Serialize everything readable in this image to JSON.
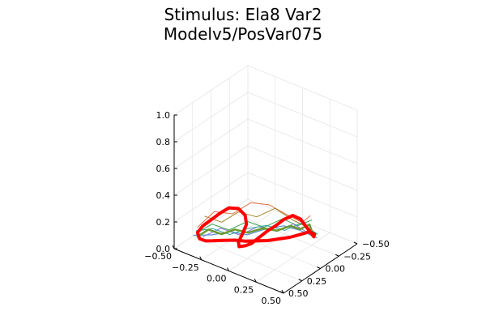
{
  "chart_data": {
    "type": "line",
    "title_lines": [
      "Stimulus: Ela8 Var2",
      "Modelv5/PosVar075"
    ],
    "xlabel": "",
    "ylabel": "",
    "zlabel": "",
    "grid": true,
    "legend": "none",
    "xlim": [
      -0.5,
      0.5
    ],
    "ylim": [
      -0.5,
      0.5
    ],
    "zlim": [
      0,
      1
    ],
    "xticks": [
      "−0.50",
      "−0.25",
      "0.00",
      "0.25",
      "0.50"
    ],
    "yticks": [
      "−0.50",
      "−0.25",
      "0.00",
      "0.25",
      "0.50"
    ],
    "zticks": [
      "0.0",
      "0.2",
      "0.4",
      "0.6",
      "0.8",
      "1.0"
    ],
    "series": [
      {
        "color": "#ff0000",
        "width": 4,
        "points": [
          [
            -0.2,
            0.42,
            0.13
          ],
          [
            -0.14,
            0.36,
            0.13
          ],
          [
            -0.08,
            0.3,
            0.13
          ],
          [
            -0.02,
            0.24,
            0.12
          ],
          [
            0.04,
            0.18,
            0.12
          ],
          [
            0.1,
            0.12,
            0.12
          ],
          [
            0.16,
            0.06,
            0.13
          ],
          [
            0.22,
            0.0,
            0.14
          ],
          [
            0.28,
            -0.06,
            0.16
          ],
          [
            0.32,
            -0.12,
            0.17
          ],
          [
            0.38,
            -0.1,
            0.18
          ],
          [
            0.42,
            -0.03,
            0.2
          ],
          [
            0.43,
            0.05,
            0.28
          ],
          [
            0.4,
            0.12,
            0.38
          ],
          [
            0.37,
            0.18,
            0.42
          ],
          [
            0.33,
            0.24,
            0.4
          ],
          [
            0.28,
            0.28,
            0.35
          ],
          [
            0.22,
            0.3,
            0.3
          ],
          [
            0.16,
            0.32,
            0.24
          ],
          [
            0.1,
            0.34,
            0.18
          ],
          [
            0.05,
            0.35,
            0.15
          ],
          [
            0.0,
            0.36,
            0.13
          ],
          [
            -0.02,
            0.34,
            0.15
          ],
          [
            -0.01,
            0.3,
            0.2
          ],
          [
            0.0,
            0.26,
            0.26
          ],
          [
            -0.04,
            0.22,
            0.3
          ],
          [
            -0.1,
            0.22,
            0.33
          ],
          [
            -0.16,
            0.26,
            0.33
          ],
          [
            -0.2,
            0.32,
            0.3
          ],
          [
            -0.24,
            0.38,
            0.26
          ],
          [
            -0.28,
            0.44,
            0.22
          ],
          [
            -0.3,
            0.48,
            0.18
          ],
          [
            -0.28,
            0.48,
            0.14
          ],
          [
            -0.24,
            0.46,
            0.13
          ],
          [
            -0.2,
            0.42,
            0.13
          ]
        ]
      },
      {
        "color": "#e26f46",
        "width": 1,
        "points": [
          [
            -0.3,
            0.48,
            0.22
          ],
          [
            -0.2,
            0.4,
            0.34
          ],
          [
            -0.1,
            0.3,
            0.32
          ],
          [
            0.0,
            0.2,
            0.4
          ],
          [
            0.1,
            0.1,
            0.38
          ],
          [
            0.2,
            0.0,
            0.3
          ],
          [
            0.3,
            -0.05,
            0.26
          ],
          [
            0.38,
            -0.04,
            0.34
          ]
        ]
      },
      {
        "color": "#3da44d",
        "width": 1,
        "points": [
          [
            -0.3,
            0.46,
            0.18
          ],
          [
            -0.22,
            0.4,
            0.24
          ],
          [
            -0.12,
            0.32,
            0.2
          ],
          [
            -0.02,
            0.22,
            0.26
          ],
          [
            0.08,
            0.14,
            0.22
          ],
          [
            0.18,
            0.04,
            0.28
          ],
          [
            0.28,
            -0.02,
            0.24
          ],
          [
            0.38,
            -0.06,
            0.3
          ]
        ]
      },
      {
        "color": "#8e6ad8",
        "width": 1,
        "points": [
          [
            -0.28,
            0.44,
            0.14
          ],
          [
            -0.18,
            0.34,
            0.2
          ],
          [
            -0.06,
            0.26,
            0.16
          ],
          [
            0.04,
            0.16,
            0.22
          ],
          [
            0.14,
            0.06,
            0.18
          ],
          [
            0.24,
            -0.02,
            0.24
          ],
          [
            0.34,
            -0.08,
            0.18
          ],
          [
            0.42,
            -0.02,
            0.22
          ]
        ]
      },
      {
        "color": "#5b8fd6",
        "width": 1.2,
        "points": [
          [
            -0.32,
            0.5,
            0.16
          ],
          [
            -0.22,
            0.4,
            0.16
          ],
          [
            -0.12,
            0.3,
            0.18
          ],
          [
            -0.02,
            0.22,
            0.16
          ],
          [
            0.08,
            0.12,
            0.2
          ],
          [
            0.18,
            0.02,
            0.22
          ],
          [
            0.28,
            -0.04,
            0.2
          ],
          [
            0.4,
            -0.1,
            0.16
          ]
        ]
      },
      {
        "color": "#a5852a",
        "width": 1,
        "points": [
          [
            -0.26,
            0.44,
            0.3
          ],
          [
            -0.16,
            0.36,
            0.26
          ],
          [
            -0.06,
            0.28,
            0.34
          ],
          [
            0.04,
            0.18,
            0.3
          ],
          [
            0.14,
            0.08,
            0.36
          ],
          [
            0.24,
            0.0,
            0.28
          ],
          [
            0.34,
            -0.08,
            0.22
          ]
        ]
      },
      {
        "color": "#2fa9a0",
        "width": 1,
        "points": [
          [
            -0.3,
            0.5,
            0.2
          ],
          [
            -0.2,
            0.42,
            0.22
          ],
          [
            -0.1,
            0.34,
            0.18
          ],
          [
            0.0,
            0.24,
            0.22
          ],
          [
            0.1,
            0.14,
            0.24
          ],
          [
            0.2,
            0.04,
            0.2
          ],
          [
            0.3,
            -0.04,
            0.26
          ],
          [
            0.42,
            -0.08,
            0.2
          ]
        ]
      },
      {
        "color": "#6b9a2f",
        "width": 2.5,
        "points": [
          [
            -0.3,
            0.48,
            0.15
          ],
          [
            -0.24,
            0.42,
            0.2
          ],
          [
            -0.16,
            0.36,
            0.17
          ],
          [
            -0.08,
            0.3,
            0.21
          ],
          [
            0.0,
            0.24,
            0.19
          ],
          [
            0.08,
            0.16,
            0.22
          ],
          [
            0.16,
            0.08,
            0.2
          ],
          [
            0.24,
            0.02,
            0.24
          ],
          [
            0.3,
            -0.02,
            0.22
          ],
          [
            0.36,
            -0.06,
            0.26
          ],
          [
            0.4,
            -0.04,
            0.22
          ]
        ]
      }
    ]
  }
}
